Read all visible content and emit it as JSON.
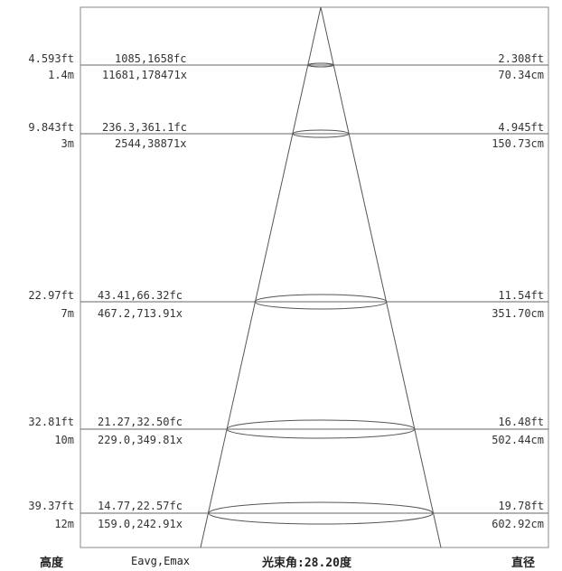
{
  "rows": [
    {
      "height_ft": "4.593ft",
      "height_m": "1.4m",
      "fc": "1085,1658fc",
      "lx": "11681,178471x",
      "dia_ft": "2.308ft",
      "dia_cm": "70.34cm"
    },
    {
      "height_ft": "9.843ft",
      "height_m": "3m",
      "fc": "236.3,361.1fc",
      "lx": "2544,38871x",
      "dia_ft": "4.945ft",
      "dia_cm": "150.73cm"
    },
    {
      "height_ft": "22.97ft",
      "height_m": "7m",
      "fc": "43.41,66.32fc",
      "lx": "467.2,713.91x",
      "dia_ft": "11.54ft",
      "dia_cm": "351.70cm"
    },
    {
      "height_ft": "32.81ft",
      "height_m": "10m",
      "fc": "21.27,32.50fc",
      "lx": "229.0,349.81x",
      "dia_ft": "16.48ft",
      "dia_cm": "502.44cm"
    },
    {
      "height_ft": "39.37ft",
      "height_m": "12m",
      "fc": "14.77,22.57fc",
      "lx": "159.0,242.91x",
      "dia_ft": "19.78ft",
      "dia_cm": "602.92cm"
    }
  ],
  "footer": {
    "height_label": "高度",
    "e_label": "Eavg,Emax",
    "beam_label": "光束角:28.20度",
    "diameter_label": "直径"
  }
}
